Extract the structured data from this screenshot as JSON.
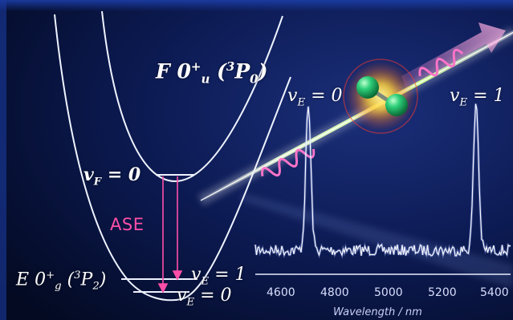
{
  "curves": {
    "upper_state": {
      "letter": "F",
      "sym": "0",
      "sym_sup": "+",
      "sym_sub": "u",
      "term_sup": "3",
      "term": "P",
      "term_sub": "0"
    },
    "lower_state": {
      "letter": "E",
      "sym": "0",
      "sym_sup": "+",
      "sym_sub": "g",
      "term_sup": "3",
      "term": "P",
      "term_sub": "2"
    }
  },
  "levels": {
    "vF0": {
      "v": "v",
      "sub": "F",
      "eq": " = 0"
    },
    "vE1": {
      "v": "v",
      "sub": "E",
      "eq": " = 1"
    },
    "vE0": {
      "v": "v",
      "sub": "E",
      "eq": " = 0"
    }
  },
  "transition_label": "ASE",
  "peaks": {
    "left": {
      "v": "v",
      "sub": "E",
      "eq": " = 0"
    },
    "right": {
      "v": "v",
      "sub": "E",
      "eq": " = 1"
    }
  },
  "spectrum_axis": {
    "ticks": [
      "4600",
      "4800",
      "5000",
      "5200",
      "5400"
    ],
    "title": "Wavelength / nm"
  },
  "colors": {
    "curve": "#eef3ff",
    "ase": "#ff4fa8",
    "beam": "#d9ffb0",
    "molecule": "#1fc467",
    "background": "#06102e"
  },
  "icons": [
    "diatomic-molecule-icon",
    "photon-wave-icon"
  ]
}
